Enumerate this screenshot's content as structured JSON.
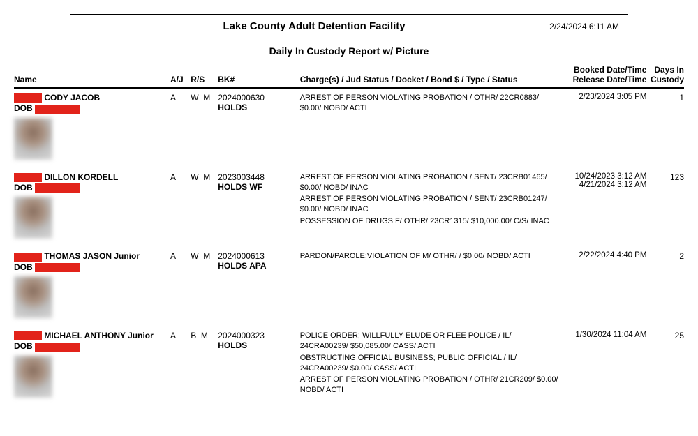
{
  "header": {
    "facility": "Lake County Adult Detention Facility",
    "timestamp": "2/24/2024 6:11 AM",
    "report_title": "Daily In Custody Report w/ Picture"
  },
  "columns": {
    "name": "Name",
    "aj": "A/J",
    "rs": "R/S",
    "bk": "BK#",
    "charges": "Charge(s) / Jud Status / Docket / Bond $ / Type / Status",
    "booked_line1": "Booked Date/Time",
    "booked_line2": "Release Date/Time",
    "days_line1": "Days In",
    "days_line2": "Custody"
  },
  "records": [
    {
      "name": "CODY JACOB",
      "dob_label": "DOB",
      "aj": "A",
      "rs": "W  M",
      "bk": "2024000630",
      "holds": "HOLDS",
      "charges": [
        "ARREST OF PERSON VIOLATING PROBATION / OTHR/ 22CR0883/ $0.00/ NOBD/ ACTI"
      ],
      "booked": "2/23/2024 3:05 PM",
      "released": "",
      "days": "1"
    },
    {
      "name": "DILLON KORDELL",
      "dob_label": "DOB",
      "aj": "A",
      "rs": "W  M",
      "bk": "2023003448",
      "holds": "HOLDS WF",
      "charges": [
        "ARREST OF PERSON VIOLATING PROBATION / SENT/ 23CRB01465/ $0.00/ NOBD/ INAC",
        "ARREST OF PERSON VIOLATING PROBATION / SENT/ 23CRB01247/ $0.00/ NOBD/ INAC",
        "POSSESSION OF DRUGS F/ OTHR/ 23CR1315/ $10,000.00/ C/S/ INAC"
      ],
      "booked": "10/24/2023 3:12 AM",
      "released": "4/21/2024 3:12 AM",
      "days": "123"
    },
    {
      "name": "THOMAS JASON Junior",
      "dob_label": "DOB",
      "aj": "A",
      "rs": "W  M",
      "bk": "2024000613",
      "holds": "HOLDS APA",
      "charges": [
        "PARDON/PAROLE;VIOLATION OF M/ OTHR/ / $0.00/ NOBD/ ACTI"
      ],
      "booked": "2/22/2024 4:40 PM",
      "released": "",
      "days": "2"
    },
    {
      "name": "MICHAEL ANTHONY Junior",
      "dob_label": "DOB",
      "aj": "A",
      "rs": "B  M",
      "bk": "2024000323",
      "holds": "HOLDS",
      "charges": [
        "POLICE ORDER; WILLFULLY ELUDE OR FLEE POLICE / IL/ 24CRA00239/ $50,085.00/ CASS/ ACTI",
        "OBSTRUCTING OFFICIAL BUSINESS; PUBLIC OFFICIAL / IL/ 24CRA00239/ $0.00/ CASS/ ACTI",
        "ARREST OF PERSON VIOLATING PROBATION / OTHR/ 21CR209/ $0.00/ NOBD/ ACTI"
      ],
      "booked": "1/30/2024 11:04 AM",
      "released": "",
      "days": "25"
    }
  ]
}
